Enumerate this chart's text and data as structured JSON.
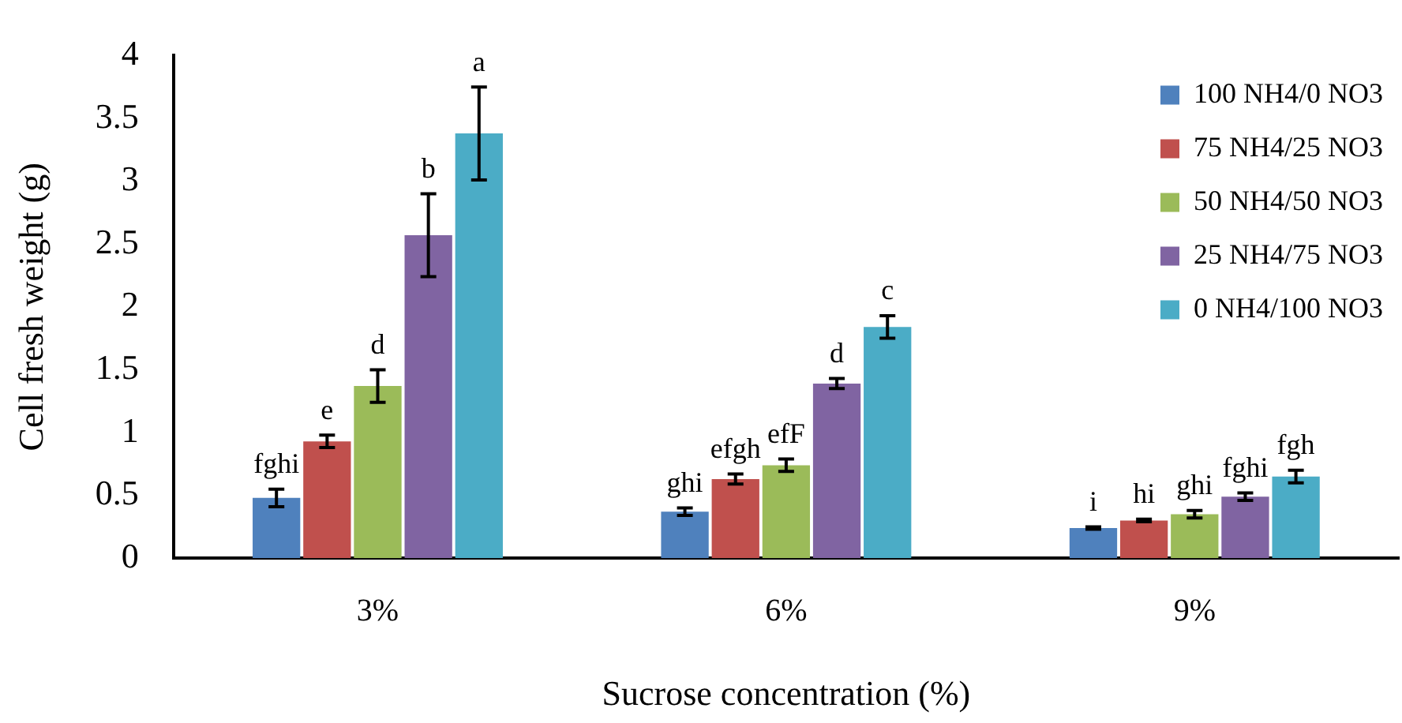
{
  "chart_data": {
    "type": "bar",
    "xlabel": "Sucrose concentration (%)",
    "ylabel": "Cell fresh weight (g)",
    "categories": [
      "3%",
      "6%",
      "9%"
    ],
    "series": [
      {
        "name": "100 NH4/0 NO3",
        "color": "#4f81bd",
        "values": [
          0.48,
          0.37,
          0.24
        ],
        "errors": [
          0.07,
          0.03,
          0.01
        ],
        "value_labels": [
          "fghi",
          "ghi",
          "i"
        ]
      },
      {
        "name": "75 NH4/25 NO3",
        "color": "#c0504d",
        "values": [
          0.93,
          0.63,
          0.3
        ],
        "errors": [
          0.05,
          0.04,
          0.01
        ],
        "value_labels": [
          "e",
          "efgh",
          "hi"
        ]
      },
      {
        "name": "50 NH4/50 NO3",
        "color": "#9bbb59",
        "values": [
          1.37,
          0.74,
          0.35
        ],
        "errors": [
          0.13,
          0.05,
          0.03
        ],
        "value_labels": [
          "d",
          "efF",
          "ghi"
        ]
      },
      {
        "name": "25 NH4/75 NO3",
        "color": "#8064a2",
        "values": [
          2.57,
          1.39,
          0.49
        ],
        "errors": [
          0.33,
          0.04,
          0.03
        ],
        "value_labels": [
          "b",
          "d",
          "fghi"
        ]
      },
      {
        "name": "0 NH4/100 NO3",
        "color": "#4bacc6",
        "values": [
          3.38,
          1.84,
          0.65
        ],
        "errors": [
          0.37,
          0.09,
          0.05
        ],
        "value_labels": [
          "a",
          "c",
          "fgh"
        ]
      }
    ],
    "ylim": [
      0,
      4
    ],
    "yticks": [
      0,
      0.5,
      1,
      1.5,
      2,
      2.5,
      3,
      3.5,
      4
    ],
    "grid": false,
    "legend": "top right"
  }
}
